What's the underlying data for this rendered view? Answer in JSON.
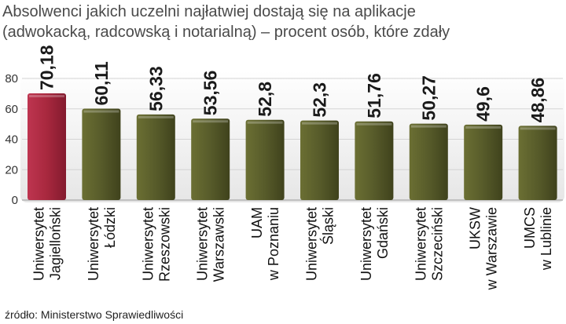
{
  "chart_data": {
    "type": "bar",
    "title_lines": [
      "Absolwenci jakich uczelni najłatwiej dostają się na aplikacje",
      "(adwokacką, radcowską i notarialną) – procent osób, które zdały"
    ],
    "categories": [
      [
        "Uniwersytet",
        "Jagielloński"
      ],
      [
        "Uniwersytet",
        "Łódzki"
      ],
      [
        "Uniwersytet",
        "Rzeszowski"
      ],
      [
        "Uniwersytet",
        "Warszawski"
      ],
      [
        "UAM",
        "w Poznaniu"
      ],
      [
        "Uniwersytet",
        "Śląski"
      ],
      [
        "Uniwersytet",
        "Gdański"
      ],
      [
        "Uniwersytet",
        "Szczeciński"
      ],
      [
        "UKSW",
        "w Warszawie"
      ],
      [
        "UMCS",
        "w Lublinie"
      ]
    ],
    "values": [
      70.18,
      60.11,
      56.33,
      53.56,
      52.8,
      52.3,
      51.76,
      50.27,
      49.6,
      48.86
    ],
    "value_labels": [
      "70,18",
      "60,11",
      "56,33",
      "53,56",
      "52,8",
      "52,3",
      "51,76",
      "50,27",
      "49,6",
      "48,86"
    ],
    "yticks": [
      0,
      20,
      40,
      60,
      80
    ],
    "ylim": [
      0,
      80
    ],
    "grid": true,
    "colors": {
      "highlight": "#a8283e",
      "bar": "#565a2a",
      "grid": "#d4d4d4"
    },
    "source": "źródło: Ministerstwo Sprawiedliwości"
  }
}
